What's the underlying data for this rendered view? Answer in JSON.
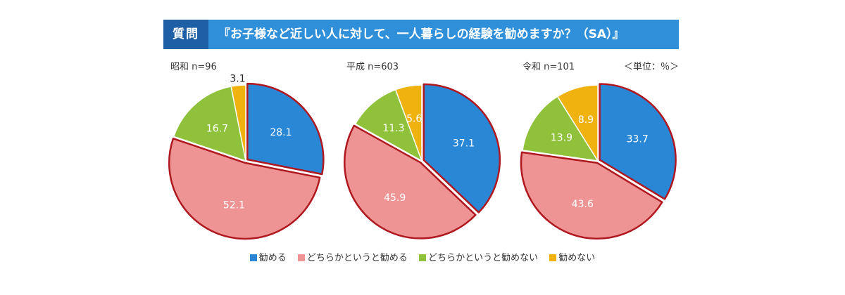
{
  "header": {
    "tag": "質問",
    "question": "『お子様など近しい人に対して、一人暮らしの経験を勧めますか？（SA）』"
  },
  "unit": "＜単位：％＞",
  "chart_data": [
    {
      "type": "pie",
      "title": "昭和 n=96",
      "labels": [
        "勧める",
        "どちらかというと勧める",
        "どちらかというと勧めない",
        "勧めない"
      ],
      "values": [
        28.1,
        52.1,
        16.7,
        3.1
      ],
      "colors": [
        "#2a87d6",
        "#ee9494",
        "#8fc23a",
        "#f0b20f"
      ]
    },
    {
      "type": "pie",
      "title": "平成 n=603",
      "labels": [
        "勧める",
        "どちらかというと勧める",
        "どちらかというと勧めない",
        "勧めない"
      ],
      "values": [
        37.1,
        45.9,
        11.3,
        5.6
      ],
      "colors": [
        "#2a87d6",
        "#ee9494",
        "#8fc23a",
        "#f0b20f"
      ]
    },
    {
      "type": "pie",
      "title": "令和 n=101",
      "labels": [
        "勧める",
        "どちらかというと勧める",
        "どちらかというと勧めない",
        "勧めない"
      ],
      "values": [
        33.7,
        43.6,
        13.9,
        8.9
      ],
      "colors": [
        "#2a87d6",
        "#ee9494",
        "#8fc23a",
        "#f0b20f"
      ]
    }
  ],
  "legend": [
    {
      "label": "勧める",
      "color": "#2a87d6"
    },
    {
      "label": "どちらかというと勧める",
      "color": "#ee9494"
    },
    {
      "label": "どちらかというと勧めない",
      "color": "#8fc23a"
    },
    {
      "label": "勧めない",
      "color": "#f0b20f"
    }
  ],
  "highlight_color": "#b01820"
}
